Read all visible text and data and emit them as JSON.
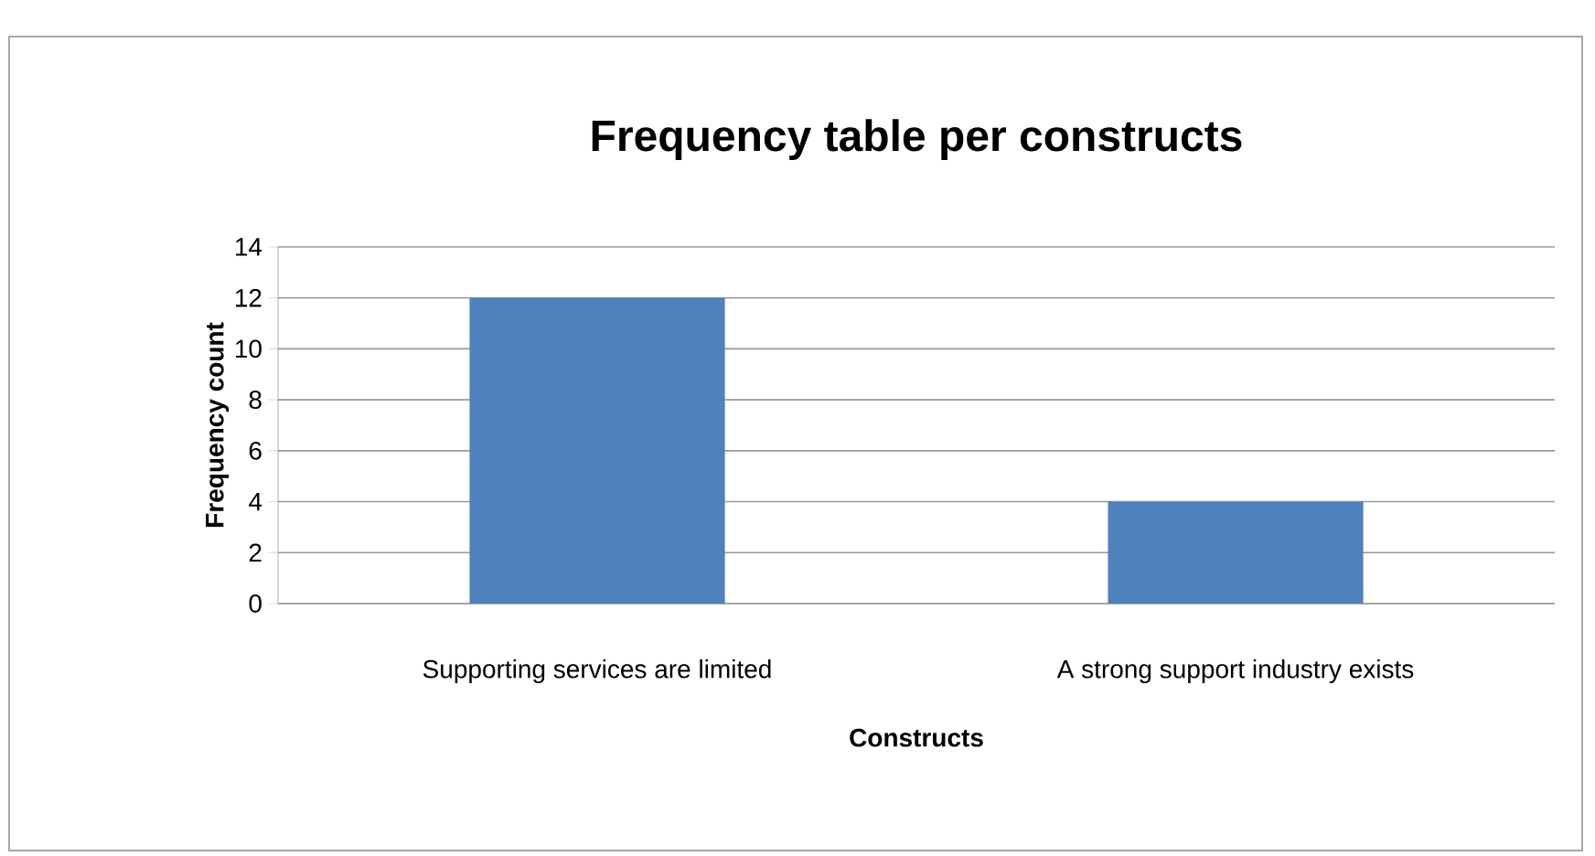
{
  "chart_data": {
    "type": "bar",
    "title": "Frequency table per constructs",
    "xlabel": "Constructs",
    "ylabel": "Frequency count",
    "categories": [
      "Supporting services are limited",
      "A strong support industry exists"
    ],
    "values": [
      12,
      4
    ],
    "color": "#4f81bd",
    "ylim": [
      0,
      14
    ],
    "yticks": [
      0,
      2,
      4,
      6,
      8,
      10,
      12,
      14
    ],
    "grid": "y"
  }
}
